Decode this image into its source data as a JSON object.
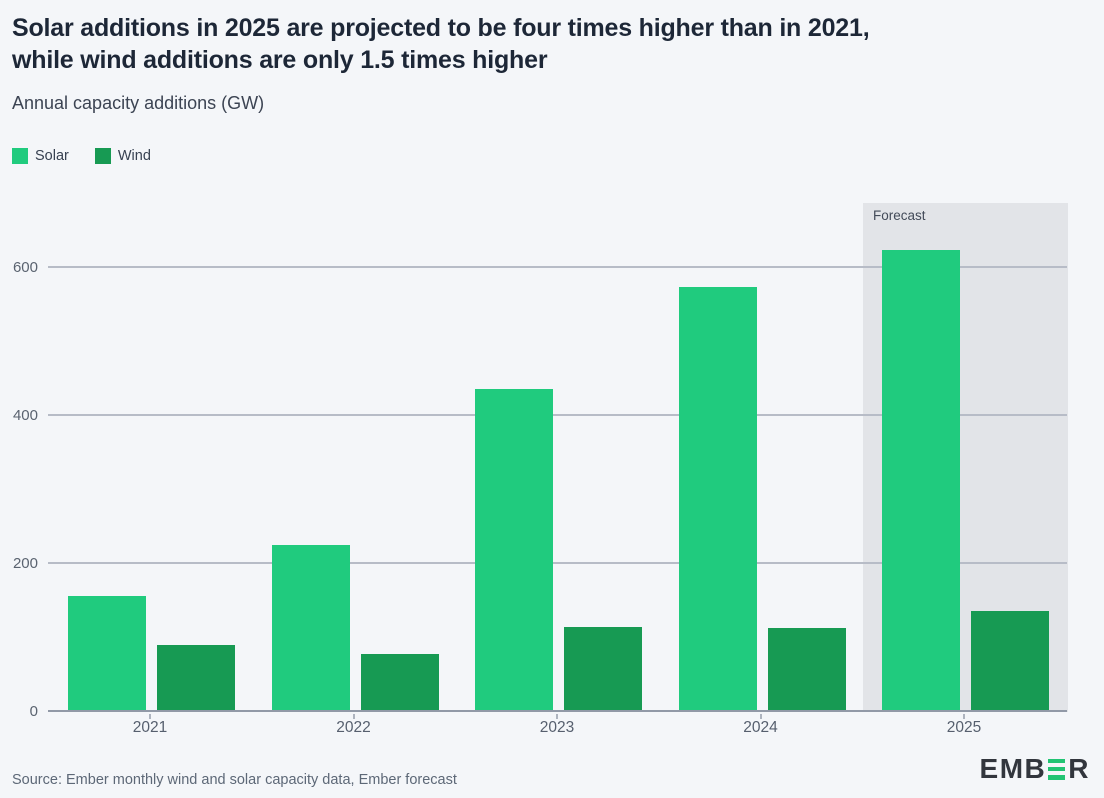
{
  "header": {
    "title_lines": [
      "Solar additions in 2025 are projected to be four times higher than in 2021,",
      "while wind additions are only 1.5 times higher"
    ],
    "subtitle": "Annual capacity additions (GW)"
  },
  "legend": [
    {
      "label": "Solar",
      "color": "#20cb7e"
    },
    {
      "label": "Wind",
      "color": "#179a53"
    }
  ],
  "chart_data": {
    "type": "bar",
    "title": "Annual capacity additions (GW)",
    "categories": [
      "2021",
      "2022",
      "2023",
      "2024",
      "2025"
    ],
    "series": [
      {
        "name": "Solar",
        "color": "#20cb7e",
        "values": [
          157,
          226,
          437,
          574,
          625
        ]
      },
      {
        "name": "Wind",
        "color": "#179a53",
        "values": [
          91,
          78,
          115,
          113,
          137
        ]
      }
    ],
    "yticks": [
      0,
      200,
      400,
      600
    ],
    "ylim": [
      0,
      690
    ],
    "xlabel": "",
    "ylabel": "GW",
    "grid": true,
    "legend_position": "top-left",
    "forecast": {
      "label": "Forecast",
      "category": "2025"
    }
  },
  "footer": {
    "source": "Source: Ember monthly wind and solar capacity data, Ember forecast",
    "logo": {
      "text_before": "EMB",
      "text_after": "R"
    }
  },
  "colors": {
    "background": "#f4f6f9",
    "title": "#1d2737",
    "forecast_band": "#e2e4e8",
    "gridline": "#b7bcc7",
    "axis_line": "#9199a7",
    "logo_text": "#32363d",
    "logo_green": "#21c473"
  }
}
